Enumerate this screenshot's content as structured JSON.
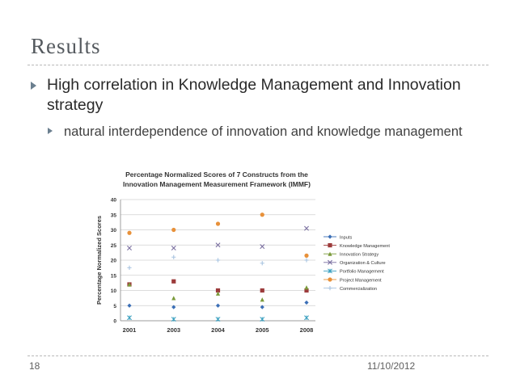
{
  "slide": {
    "title": "Results",
    "bullet_1": "High correlation in Knowledge Management and Innovation strategy",
    "bullet_2": "natural interdependence of innovation and knowledge management",
    "page_number": "18",
    "date": "11/10/2012"
  },
  "chart_data": {
    "type": "scatter",
    "title_line1": "Percentage Normalized Scores of 7 Constructs from the",
    "title_line2": "Innovation Management Measurement Framework (IMMF)",
    "ylabel": "Percentage Normalized Scores",
    "xlabel": "",
    "categories": [
      "2001",
      "2003",
      "2004",
      "2005",
      "2008"
    ],
    "ylim": [
      0,
      40
    ],
    "yticks": [
      0,
      5,
      10,
      15,
      20,
      25,
      30,
      35,
      40
    ],
    "grid": true,
    "legend_position": "right",
    "series": [
      {
        "name": "Inputs",
        "color": "#3b6fb6",
        "marker": "diamond",
        "values": [
          5,
          4.5,
          5,
          4.5,
          6
        ]
      },
      {
        "name": "Knowledge Management",
        "color": "#9c3b3b",
        "marker": "square",
        "values": [
          12,
          13,
          10,
          10,
          10
        ]
      },
      {
        "name": "Innovation Strategy",
        "color": "#7a9a3a",
        "marker": "triangle",
        "values": [
          12,
          7.5,
          9,
          7,
          11
        ]
      },
      {
        "name": "Organization & Culture",
        "color": "#7a6fa0",
        "marker": "x",
        "values": [
          24,
          24,
          25,
          24.5,
          30.5
        ]
      },
      {
        "name": "Portfolio Management",
        "color": "#3aa0c0",
        "marker": "star",
        "values": [
          1,
          0.5,
          0.5,
          0.5,
          1
        ]
      },
      {
        "name": "Project Management",
        "color": "#e8913a",
        "marker": "circle",
        "values": [
          29,
          30,
          32,
          35,
          21.5
        ]
      },
      {
        "name": "Commercialization",
        "color": "#a8c4e0",
        "marker": "plus",
        "values": [
          17.5,
          21,
          20,
          19,
          20
        ]
      }
    ]
  }
}
